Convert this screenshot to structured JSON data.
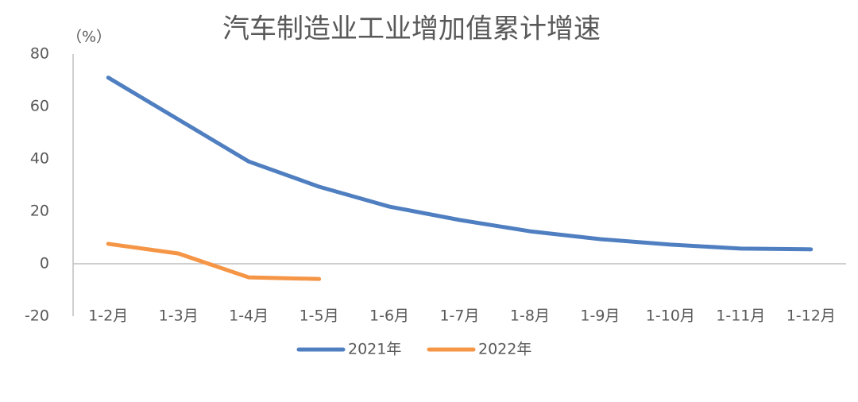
{
  "chart_data": {
    "type": "line",
    "title": "汽车制造业工业增加值累计增速",
    "y_unit": "（%）",
    "categories": [
      "1-2月",
      "1-3月",
      "1-4月",
      "1-5月",
      "1-6月",
      "1-7月",
      "1-8月",
      "1-9月",
      "1-10月",
      "1-11月",
      "1-12月"
    ],
    "series": [
      {
        "name": "2021年",
        "color": "#4f7fc0",
        "values": [
          71,
          55,
          39,
          29.4,
          21.8,
          16.7,
          12.4,
          9.4,
          7.3,
          5.8,
          5.5
        ]
      },
      {
        "name": "2022年",
        "color": "#f59546",
        "values": [
          7.6,
          3.9,
          -5.2,
          -5.8,
          null,
          null,
          null,
          null,
          null,
          null,
          null
        ]
      }
    ],
    "ylim": [
      -20,
      80
    ],
    "yticks": [
      -20,
      0,
      20,
      40,
      60,
      80
    ],
    "legend": "bottom"
  }
}
